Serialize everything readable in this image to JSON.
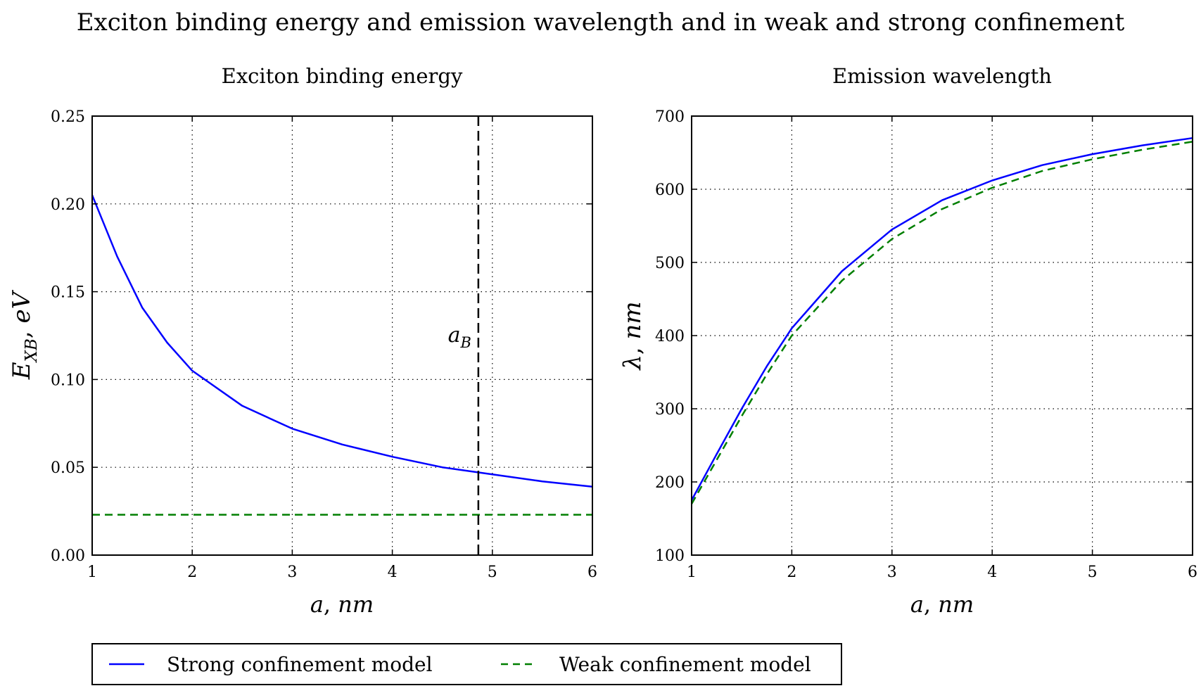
{
  "figure": {
    "title": "Exciton binding energy and emission wavelength and in weak and strong confinement"
  },
  "legend": {
    "items": [
      {
        "label": "Strong confinement model",
        "color": "#0000ff",
        "style": "solid"
      },
      {
        "label": "Weak confinement model",
        "color": "#007f00",
        "style": "dashed"
      }
    ]
  },
  "chart_data": [
    {
      "type": "line",
      "title": "Exciton binding energy",
      "xlabel": "a, nm",
      "ylabel": "E_XB, eV",
      "ylabel_main": "E",
      "ylabel_sub": "XB",
      "ylabel_rest": ", eV",
      "xlim": [
        1,
        6
      ],
      "ylim": [
        0.0,
        0.25
      ],
      "xticks": [
        "1",
        "2",
        "3",
        "4",
        "5",
        "6"
      ],
      "yticks": [
        "0.00",
        "0.05",
        "0.10",
        "0.15",
        "0.20",
        "0.25"
      ],
      "grid": true,
      "vline": {
        "x": 4.86,
        "label": "a_B",
        "label_main": "a",
        "label_sub": "B"
      },
      "series": [
        {
          "name": "Strong confinement model",
          "color": "#0000ff",
          "style": "solid",
          "x": [
            1.0,
            1.25,
            1.5,
            1.75,
            2.0,
            2.5,
            3.0,
            3.5,
            4.0,
            4.5,
            5.0,
            5.5,
            6.0
          ],
          "y": [
            0.205,
            0.17,
            0.141,
            0.121,
            0.105,
            0.085,
            0.072,
            0.063,
            0.056,
            0.05,
            0.046,
            0.042,
            0.039
          ]
        },
        {
          "name": "Weak confinement model",
          "color": "#007f00",
          "style": "dashed",
          "x": [
            1.0,
            6.0
          ],
          "y": [
            0.023,
            0.023
          ]
        }
      ]
    },
    {
      "type": "line",
      "title": "Emission wavelength",
      "xlabel": "a, nm",
      "ylabel": "λ, nm",
      "xlim": [
        1,
        6
      ],
      "ylim": [
        100,
        700
      ],
      "xticks": [
        "1",
        "2",
        "3",
        "4",
        "5",
        "6"
      ],
      "yticks": [
        "100",
        "200",
        "300",
        "400",
        "500",
        "600",
        "700"
      ],
      "grid": true,
      "series": [
        {
          "name": "Strong confinement model",
          "color": "#0000ff",
          "style": "solid",
          "x": [
            1.0,
            1.25,
            1.5,
            1.75,
            2.0,
            2.5,
            3.0,
            3.5,
            4.0,
            4.5,
            5.0,
            5.5,
            6.0
          ],
          "y": [
            175,
            238,
            300,
            358,
            410,
            488,
            545,
            585,
            612,
            633,
            648,
            660,
            670
          ]
        },
        {
          "name": "Weak confinement model",
          "color": "#007f00",
          "style": "dashed",
          "x": [
            1.0,
            1.25,
            1.5,
            1.75,
            2.0,
            2.5,
            3.0,
            3.5,
            4.0,
            4.5,
            5.0,
            5.5,
            6.0
          ],
          "y": [
            170,
            230,
            290,
            347,
            400,
            475,
            532,
            573,
            602,
            625,
            641,
            654,
            665
          ]
        }
      ]
    }
  ]
}
